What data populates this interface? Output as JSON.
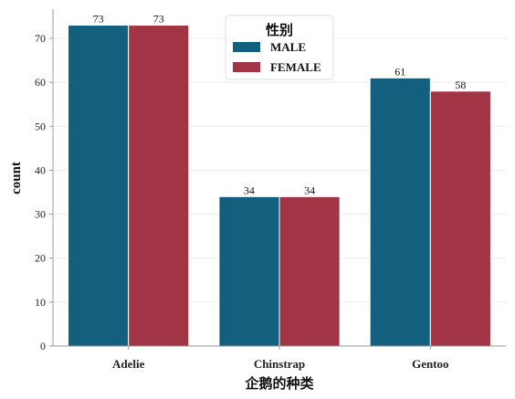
{
  "chart_data": {
    "type": "bar",
    "categories": [
      "Adelie",
      "Chinstrap",
      "Gentoo"
    ],
    "series": [
      {
        "name": "MALE",
        "values": [
          73,
          34,
          61
        ],
        "color": "#135f7e"
      },
      {
        "name": "FEMALE",
        "values": [
          73,
          34,
          58
        ],
        "color": "#a23545"
      }
    ],
    "xlabel": "企鹅的种类",
    "ylabel": "count",
    "ylim": [
      0,
      76.65
    ],
    "yticks": [
      0,
      10,
      20,
      30,
      40,
      50,
      60,
      70
    ],
    "legend": {
      "title": "性别",
      "placement": "top-center"
    },
    "grid": "horizontal"
  }
}
